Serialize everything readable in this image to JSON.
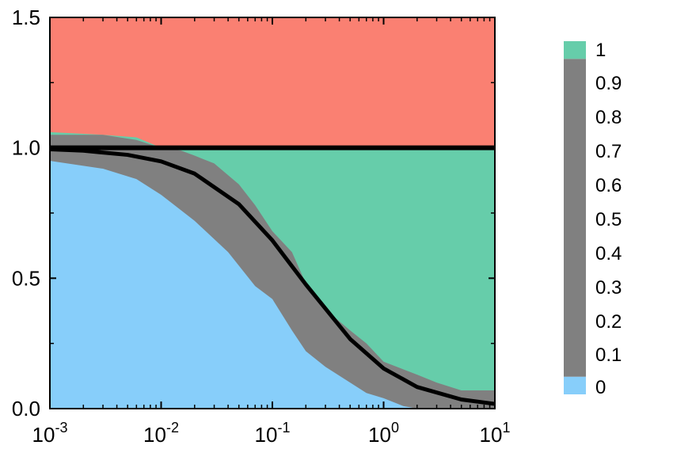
{
  "chart_data": {
    "type": "area",
    "xscale": "log",
    "xlim": [
      0.001,
      10
    ],
    "ylim": [
      0,
      1.5
    ],
    "x_ticks": [
      {
        "value": 0.001,
        "base": "10",
        "exp": "-3"
      },
      {
        "value": 0.01,
        "base": "10",
        "exp": "-2"
      },
      {
        "value": 0.1,
        "base": "10",
        "exp": "-1"
      },
      {
        "value": 1,
        "base": "10",
        "exp": "0"
      },
      {
        "value": 10,
        "base": "10",
        "exp": "1"
      }
    ],
    "y_ticks": [
      {
        "value": 0,
        "label": "0.0"
      },
      {
        "value": 0.5,
        "label": "0.5"
      },
      {
        "value": 1,
        "label": "1.0"
      },
      {
        "value": 1.5,
        "label": "1.5"
      }
    ],
    "regions": {
      "lower_boundary": {
        "color": "#87cefa",
        "x": [
          0.001,
          0.003,
          0.006,
          0.01,
          0.02,
          0.04,
          0.07,
          0.1,
          0.15,
          0.2,
          0.3,
          0.5,
          0.7,
          1,
          1.5,
          2,
          3,
          5,
          10
        ],
        "y": [
          0.95,
          0.92,
          0.88,
          0.82,
          0.72,
          0.6,
          0.47,
          0.42,
          0.3,
          0.22,
          0.16,
          0.1,
          0.06,
          0.04,
          0.01,
          0.0,
          0.0,
          0.0,
          0.0
        ]
      },
      "upper_boundary": {
        "color": "#66cdaa",
        "x": [
          0.001,
          0.003,
          0.006,
          0.01,
          0.015,
          0.02,
          0.03,
          0.05,
          0.07,
          0.1,
          0.15,
          0.2,
          0.3,
          0.5,
          0.7,
          1,
          2,
          3,
          5,
          10
        ],
        "y": [
          1.05,
          1.05,
          1.03,
          1.0,
          0.99,
          0.97,
          0.94,
          0.86,
          0.78,
          0.68,
          0.6,
          0.48,
          0.38,
          0.3,
          0.25,
          0.18,
          0.13,
          0.1,
          0.07,
          0.07
        ]
      },
      "red_boundary": {
        "color": "#fa8072",
        "x": [
          0.001,
          0.003,
          0.006,
          0.01,
          10
        ],
        "y": [
          1.06,
          1.05,
          1.04,
          1.0,
          1.0
        ]
      },
      "gray_color": "#808080"
    },
    "lines": [
      {
        "type": "hline",
        "y": 1.0,
        "color": "#000000"
      },
      {
        "type": "curve",
        "formula": "1/(1+5.5x)",
        "color": "#000000",
        "x": [
          0.001,
          0.002,
          0.005,
          0.01,
          0.02,
          0.05,
          0.1,
          0.2,
          0.5,
          1,
          2,
          5,
          10
        ],
        "y": [
          0.9945,
          0.989,
          0.973,
          0.948,
          0.901,
          0.784,
          0.645,
          0.476,
          0.267,
          0.154,
          0.083,
          0.035,
          0.018
        ]
      }
    ],
    "colorbar": {
      "labels": [
        "1",
        "0.9",
        "0.8",
        "0.7",
        "0.6",
        "0.5",
        "0.4",
        "0.3",
        "0.2",
        "0.1",
        "0"
      ],
      "segments": [
        {
          "from": 0,
          "to": 0.05,
          "color": "#87cefa"
        },
        {
          "from": 0.05,
          "to": 0.95,
          "color": "#808080"
        },
        {
          "from": 0.95,
          "to": 1,
          "color": "#66cdaa"
        }
      ]
    }
  }
}
